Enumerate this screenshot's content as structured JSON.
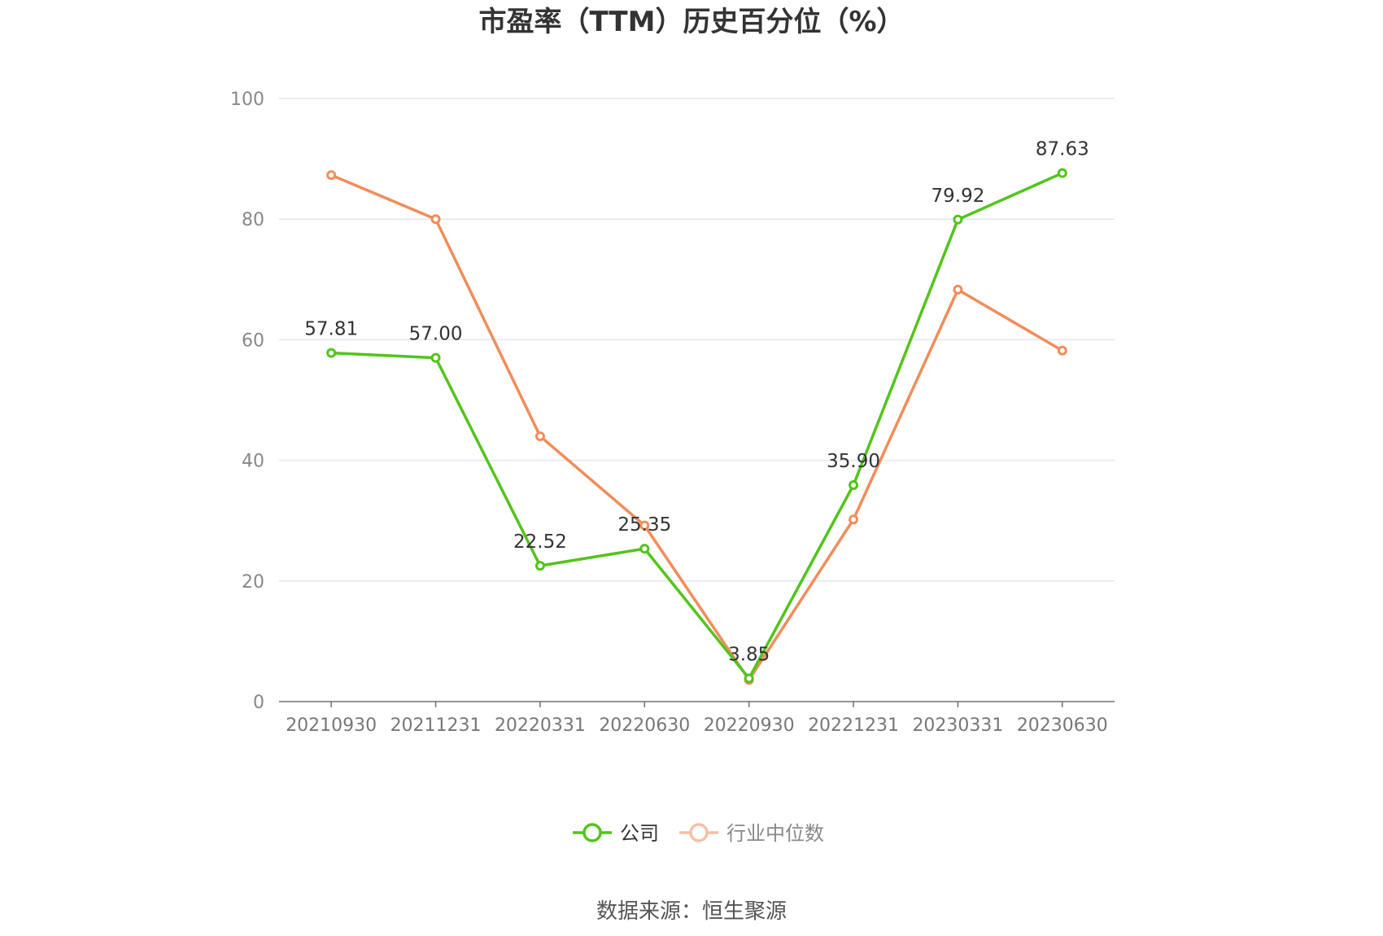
{
  "chart_data": {
    "type": "line",
    "title": "市盈率（TTM）历史百分位（%）",
    "xlabel": "",
    "ylabel": "",
    "categories": [
      "20210930",
      "20211231",
      "20220331",
      "20220630",
      "20220930",
      "20221231",
      "20230331",
      "20230630"
    ],
    "ylim": [
      0,
      100
    ],
    "yticks": [
      0,
      20,
      40,
      60,
      80,
      100
    ],
    "grid": true,
    "legend": "bottom-center",
    "series": [
      {
        "name": "公司",
        "color": "#52c41a",
        "values": [
          57.81,
          57.0,
          22.52,
          25.35,
          3.85,
          35.9,
          79.92,
          87.63
        ],
        "labels": [
          "57.81",
          "57.00",
          "22.52",
          "25.35",
          "3.85",
          "35.90",
          "79.92",
          "87.63"
        ]
      },
      {
        "name": "行业中位数",
        "color": "#f28c5a",
        "values": [
          87.3,
          80.0,
          44.0,
          29.2,
          3.6,
          30.2,
          68.3,
          58.2
        ]
      }
    ]
  },
  "source": "数据来源：恒生聚源"
}
